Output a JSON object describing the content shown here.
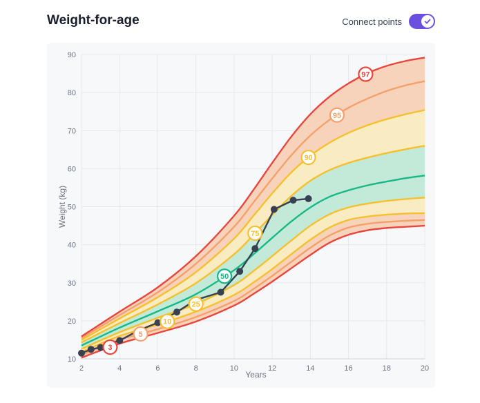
{
  "header": {
    "title": "Weight-for-age",
    "toggle_label": "Connect points",
    "toggle_on": true
  },
  "colors": {
    "p3": "#e8453c",
    "p5": "#f4a06b",
    "p10": "#f5c02e",
    "p25": "#f5c02e",
    "p50": "#15b886",
    "p75": "#f5c02e",
    "p90": "#f5c02e",
    "p95": "#f4a06b",
    "p97": "#e8453c",
    "band_outer": "#f8d3bb",
    "band_mid": "#f9ebc2",
    "band_inner": "#c3ead9",
    "patient": "#374151",
    "accent": "#6d4fe0"
  },
  "chart_data": {
    "type": "line",
    "title": "Weight-for-age",
    "xlabel": "Years",
    "ylabel": "Weight (kg)",
    "xlim": [
      2,
      20
    ],
    "ylim": [
      10,
      90
    ],
    "xticks": [
      2,
      4,
      6,
      8,
      10,
      12,
      14,
      16,
      18,
      20
    ],
    "yticks": [
      10,
      20,
      30,
      40,
      50,
      60,
      70,
      80,
      90
    ],
    "grid": true,
    "percentiles": [
      {
        "name": "3",
        "x": [
          2,
          4,
          6,
          8,
          10,
          11,
          12,
          13,
          14,
          15,
          16,
          17,
          18,
          19,
          20
        ],
        "values": [
          10.3,
          14,
          16.8,
          19.8,
          24,
          27,
          30.3,
          33.8,
          37.3,
          40.5,
          42.6,
          43.8,
          44.4,
          44.7,
          45
        ]
      },
      {
        "name": "5",
        "x": [
          2,
          4,
          6,
          8,
          10,
          11,
          12,
          13,
          14,
          15,
          16,
          17,
          18,
          19,
          20
        ],
        "values": [
          11,
          15,
          17.8,
          21,
          25.2,
          28.3,
          31.8,
          35.5,
          39.2,
          42.4,
          44.5,
          45.5,
          46,
          46.3,
          46.5
        ]
      },
      {
        "name": "10",
        "x": [
          2,
          4,
          6,
          8,
          10,
          11,
          12,
          13,
          14,
          15,
          16,
          17,
          18,
          19,
          20
        ],
        "values": [
          11.8,
          16,
          19,
          22.4,
          26.8,
          30,
          33.6,
          37.5,
          41.3,
          44.5,
          46.5,
          47.4,
          47.9,
          48.2,
          48.3
        ]
      },
      {
        "name": "25",
        "x": [
          2,
          4,
          6,
          8,
          10,
          11,
          12,
          13,
          14,
          15,
          16,
          17,
          18,
          19,
          20
        ],
        "values": [
          12.6,
          17,
          20.8,
          24.4,
          29.4,
          33,
          37,
          41.1,
          45,
          48,
          49.8,
          50.8,
          51.5,
          52,
          52.4
        ]
      },
      {
        "name": "50",
        "x": [
          2,
          4,
          6,
          8,
          10,
          11,
          12,
          13,
          14,
          15,
          16,
          17,
          18,
          19,
          20
        ],
        "values": [
          13.5,
          18.2,
          22.5,
          27,
          33.3,
          37.4,
          41.8,
          46.1,
          49.8,
          52.6,
          54.3,
          55.6,
          56.6,
          57.5,
          58.2
        ]
      },
      {
        "name": "75",
        "x": [
          2,
          4,
          6,
          8,
          10,
          11,
          12,
          13,
          14,
          15,
          16,
          17,
          18,
          19,
          20
        ],
        "values": [
          14.3,
          19.4,
          24.3,
          29.9,
          37.5,
          42.5,
          47.8,
          52.8,
          56.8,
          59.6,
          61.5,
          62.9,
          64.1,
          65.1,
          66
        ]
      },
      {
        "name": "90",
        "x": [
          2,
          4,
          6,
          8,
          10,
          11,
          12,
          13,
          14,
          15,
          16,
          17,
          18,
          19,
          20
        ],
        "values": [
          15,
          20.6,
          26.2,
          32.8,
          41.6,
          47.5,
          53.5,
          59,
          63.4,
          66.8,
          69.4,
          71.4,
          73,
          74.3,
          75.4
        ]
      },
      {
        "name": "95",
        "x": [
          2,
          4,
          6,
          8,
          10,
          11,
          12,
          13,
          14,
          15,
          16,
          17,
          18,
          19,
          20
        ],
        "values": [
          15.5,
          21.5,
          27.5,
          35,
          44.7,
          51,
          57.4,
          63.5,
          68.7,
          72.8,
          76,
          78.4,
          80.4,
          81.9,
          83
        ]
      },
      {
        "name": "97",
        "x": [
          2,
          4,
          6,
          8,
          10,
          11,
          12,
          13,
          14,
          15,
          16,
          17,
          18,
          19,
          20
        ],
        "values": [
          15.9,
          22.4,
          28.8,
          37,
          47.6,
          54.3,
          61.5,
          68.4,
          74.3,
          78.9,
          82.4,
          85.1,
          87,
          88.3,
          89.2
        ]
      }
    ],
    "percentile_labels": [
      {
        "name": "3",
        "x": 3.5
      },
      {
        "name": "5",
        "x": 5.1
      },
      {
        "name": "10",
        "x": 6.5
      },
      {
        "name": "25",
        "x": 8
      },
      {
        "name": "50",
        "x": 9.5
      },
      {
        "name": "75",
        "x": 11.1
      },
      {
        "name": "90",
        "x": 13.9
      },
      {
        "name": "95",
        "x": 15.4
      },
      {
        "name": "97",
        "x": 16.9
      }
    ],
    "patient": {
      "x": [
        2.0,
        2.5,
        3.0,
        3.5,
        4.0,
        5.0,
        6.0,
        7.0,
        8.0,
        9.3,
        10.3,
        11.1,
        12.1,
        13.1,
        13.9
      ],
      "values": [
        11.5,
        12.5,
        13.0,
        14.0,
        14.8,
        17.5,
        19.5,
        22.3,
        25.5,
        27.5,
        33.0,
        39.0,
        49.3,
        51.7,
        52.1
      ]
    }
  }
}
